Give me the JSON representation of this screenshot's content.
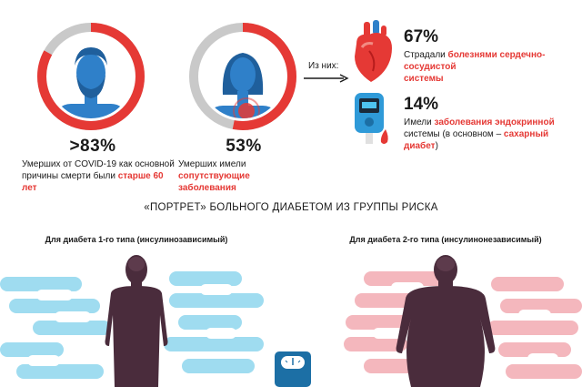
{
  "top": {
    "male_stat": {
      "value": ">83%",
      "caption_lines": [
        "Умерших от COVID-19 как основной",
        "причины смерти были "
      ],
      "caption_highlight": "старше 60 лет"
    },
    "female_stat": {
      "value": "53%",
      "caption_plain": "Умерших имели ",
      "caption_highlight_1": "сопутствующие",
      "caption_highlight_2": "заболевания"
    },
    "from_them_label": "Из них:",
    "heart_stat": {
      "value": "67%",
      "caption_plain": "Страдали ",
      "caption_highlight_1": "болезнями сердечно-сосудистой",
      "caption_highlight_2": "системы"
    },
    "endocrine_stat": {
      "value": "14%",
      "caption_plain": "Имели ",
      "caption_highlight_1": "заболевания эндокринной",
      "caption_plain_2": "системы (в основном – ",
      "caption_highlight_2": "сахарный диабет",
      "caption_plain_3": ")"
    }
  },
  "section": {
    "title": "«ПОРТРЕТ» БОЛЬНОГО ДИАБЕТОМ ИЗ ГРУППЫ РИСКА",
    "type1_label": "Для диабета 1-го типа (инсулинозависимый)",
    "type2_label": "Для диабета 2-го типа (инсулинонезависимый)"
  },
  "colors": {
    "accent_red": "#e53935",
    "ring_grey": "#c9c9c9",
    "avatar_blue": "#2f80c9",
    "cloud_blue": "#9fdcf0",
    "cloud_pink": "#f4b7bd",
    "silhouette": "#4a2c3c",
    "scale_blue": "#1c6fa5"
  }
}
